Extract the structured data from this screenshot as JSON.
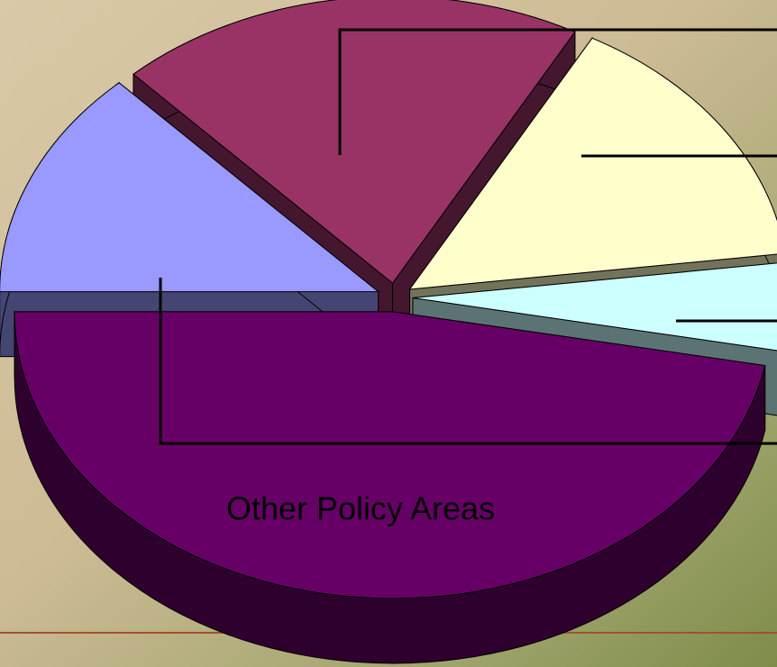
{
  "chart_data": {
    "type": "pie",
    "categories": [
      null,
      null,
      null,
      null,
      "Other Policy Areas"
    ],
    "values": [
      13,
      20,
      15,
      5,
      47
    ],
    "colors": [
      "#9999ff",
      "#993366",
      "#ffffcc",
      "#ccffff",
      "#660066"
    ]
  }
}
